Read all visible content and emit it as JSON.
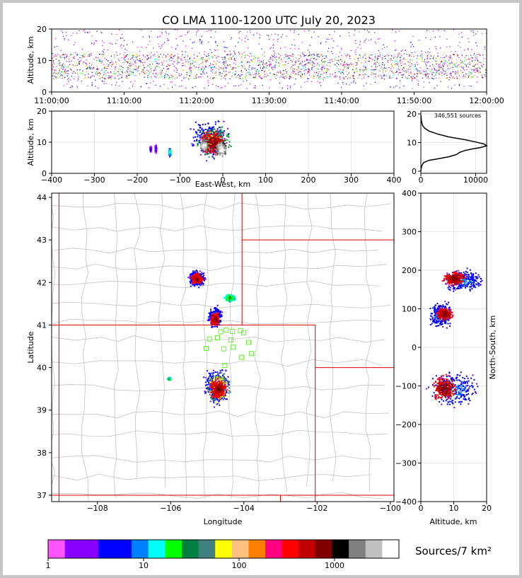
{
  "chart_data": [
    {
      "type": "scatter",
      "panel": "time-height",
      "title": "CO LMA 1100-1200 UTC July 20, 2023",
      "ylabel": "Altitude, km",
      "xlim": [
        "11:00:00",
        "12:00:00"
      ],
      "ylim": [
        0,
        20
      ],
      "xticks": [
        "11:00:00",
        "11:10:00",
        "11:20:00",
        "11:30:00",
        "11:40:00",
        "11:50:00",
        "12:00:00"
      ],
      "yticks": [
        "0",
        "10",
        "20"
      ],
      "core_altitude_km": [
        4,
        12
      ]
    },
    {
      "type": "heatmap",
      "panel": "east-west-altitude",
      "xlabel": "East-West, km",
      "ylabel": "Altitude, km",
      "xlim": [
        -400,
        400
      ],
      "ylim": [
        0,
        20
      ],
      "xticks": [
        "−400",
        "−300",
        "−200",
        "−100",
        "0",
        "100",
        "200",
        "300",
        "400"
      ],
      "yticks": [
        "0",
        "10",
        "20"
      ],
      "cells": [
        {
          "x": -125,
          "y": 7,
          "w": 6,
          "h": 3,
          "v": 5
        },
        {
          "x": -158,
          "y": 8,
          "w": 4,
          "h": 3,
          "v": 1
        },
        {
          "x": -170,
          "y": 8,
          "w": 4,
          "h": 2,
          "v": 1
        },
        {
          "x": -30,
          "y": 11,
          "w": 110,
          "h": 16,
          "v": 3
        },
        {
          "x": -25,
          "y": 10.5,
          "w": 90,
          "h": 13,
          "v": 8
        },
        {
          "x": -25,
          "y": 10,
          "w": 70,
          "h": 10,
          "v": 14
        },
        {
          "x": -5,
          "y": 8,
          "w": 30,
          "h": 5,
          "v": 18
        },
        {
          "x": -45,
          "y": 9,
          "w": 22,
          "h": 4,
          "v": 18
        }
      ]
    },
    {
      "type": "line",
      "panel": "altitude-histogram",
      "annotation": "346,551 sources",
      "xlim": [
        0,
        12000
      ],
      "ylim": [
        0,
        20
      ],
      "xticks": [
        "0",
        "10000"
      ],
      "yticks": [
        "0",
        "10",
        "20"
      ],
      "x": [
        0,
        50,
        200,
        500,
        1500,
        3000,
        5000,
        6500,
        7000,
        8000,
        9500,
        11000,
        12000,
        11500,
        10000,
        8000,
        5000,
        3000,
        1500,
        700,
        300,
        100,
        20
      ],
      "y": [
        0,
        1,
        2,
        3,
        3.8,
        4.3,
        5.0,
        5.8,
        6.5,
        7.2,
        7.8,
        8.3,
        8.9,
        9.5,
        10.2,
        11.0,
        12.0,
        13.0,
        14.0,
        15.0,
        16.0,
        17.5,
        19.5
      ]
    },
    {
      "type": "heatmap",
      "panel": "plan-view",
      "xlabel": "Longitude",
      "ylabel": "Latitude",
      "xlim": [
        -109.25,
        -99.9
      ],
      "ylim": [
        36.85,
        44.1
      ],
      "xticks": [
        "−108",
        "−106",
        "−104",
        "−102",
        "−100"
      ],
      "yticks": [
        "37",
        "38",
        "39",
        "40",
        "41",
        "42",
        "43",
        "44"
      ],
      "cells": [
        {
          "x": -104.75,
          "y": 39.55,
          "w": 0.85,
          "h": 1.1,
          "v": 3
        },
        {
          "x": -104.72,
          "y": 39.55,
          "w": 0.7,
          "h": 0.9,
          "v": 9
        },
        {
          "x": -104.72,
          "y": 39.5,
          "w": 0.55,
          "h": 0.6,
          "v": 14
        },
        {
          "x": -105.3,
          "y": 42.1,
          "w": 0.55,
          "h": 0.45,
          "v": 3
        },
        {
          "x": -105.3,
          "y": 42.1,
          "w": 0.4,
          "h": 0.3,
          "v": 14
        },
        {
          "x": -104.8,
          "y": 41.2,
          "w": 0.45,
          "h": 0.6,
          "v": 3
        },
        {
          "x": -104.8,
          "y": 41.15,
          "w": 0.3,
          "h": 0.35,
          "v": 14
        },
        {
          "x": -104.4,
          "y": 41.65,
          "w": 0.35,
          "h": 0.2,
          "v": 6
        },
        {
          "x": -106.05,
          "y": 39.75,
          "w": 0.1,
          "h": 0.08,
          "v": 6
        }
      ],
      "station_lon": [
        -104.63,
        -104.48,
        -104.31,
        -104.09,
        -104.0,
        -104.94,
        -104.72,
        -104.35,
        -105.03,
        -104.55,
        -104.29,
        -104.52,
        -103.87,
        -104.06,
        -103.79
      ],
      "station_lat": [
        40.84,
        40.88,
        40.85,
        40.87,
        40.82,
        40.67,
        40.7,
        40.65,
        40.45,
        40.44,
        40.48,
        40.05,
        40.59,
        40.24,
        40.33
      ]
    },
    {
      "type": "heatmap",
      "panel": "altitude-north-south",
      "xlabel": "Altitude, km",
      "ylabel": "North-South, km",
      "xlim": [
        0,
        20
      ],
      "ylim": [
        -400,
        400
      ],
      "xticks": [
        "0",
        "10",
        "20"
      ],
      "yticks": [
        "−400",
        "−300",
        "−200",
        "−100",
        "0",
        "100",
        "200",
        "300",
        "400"
      ],
      "cells": [
        {
          "x": 13,
          "y": 175,
          "w": 15,
          "h": 70,
          "v": 3
        },
        {
          "x": 10,
          "y": 180,
          "w": 8,
          "h": 45,
          "v": 14
        },
        {
          "x": 6,
          "y": 85,
          "w": 9,
          "h": 80,
          "v": 3
        },
        {
          "x": 7,
          "y": 88,
          "w": 6,
          "h": 40,
          "v": 14
        },
        {
          "x": 10,
          "y": -105,
          "w": 18,
          "h": 110,
          "v": 3
        },
        {
          "x": 7,
          "y": -105,
          "w": 9,
          "h": 80,
          "v": 14
        }
      ]
    }
  ],
  "colorbar": {
    "label": "Sources/7 km²",
    "ticks": [
      "1",
      "10",
      "100",
      "1000"
    ],
    "colors": [
      "#ff55ff",
      "#8800ff",
      "#8800ff",
      "#0000ff",
      "#0000ff",
      "#0080ff",
      "#00ffff",
      "#00ff00",
      "#008040",
      "#408080",
      "#ffff00",
      "#ffc080",
      "#ff8000",
      "#ff0080",
      "#ff0000",
      "#c00000",
      "#800000",
      "#000000",
      "#808080",
      "#c0c0c0",
      "#ffffff"
    ]
  }
}
